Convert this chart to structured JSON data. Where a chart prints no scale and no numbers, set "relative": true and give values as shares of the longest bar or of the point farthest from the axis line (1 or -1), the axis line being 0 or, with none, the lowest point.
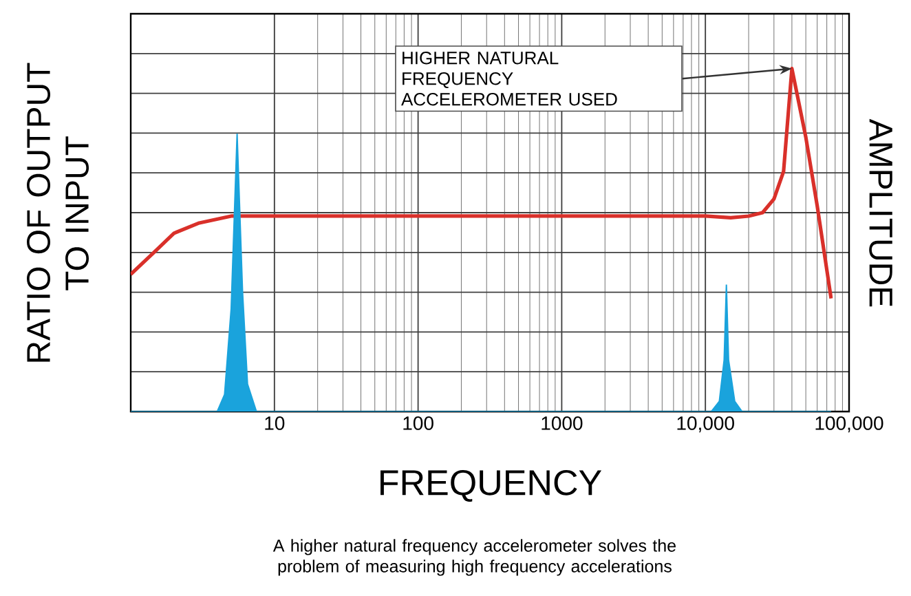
{
  "chart_data": {
    "type": "line",
    "xlabel": "FREQUENCY",
    "ylabel": "RATIO OF OUTPUT TO INPUT",
    "y2label": "AMPLITUDE",
    "relative": true,
    "log": "x",
    "grid": true,
    "xlim": [
      1,
      100000
    ],
    "xticks": [
      10,
      100,
      1000,
      {
        "value": 10000,
        "label": "10,000"
      },
      {
        "value": 100000,
        "label": "100,000"
      }
    ],
    "series": [
      {
        "color": "#d9302a",
        "x": [
          1,
          1.5,
          2,
          3,
          5,
          10,
          100,
          1000,
          10000,
          15000,
          20000,
          25000,
          30000,
          35000,
          40000,
          50000,
          60000,
          75000
        ],
        "values": [
          0.4,
          0.47,
          0.52,
          0.55,
          0.57,
          0.57,
          0.57,
          0.57,
          0.57,
          0.565,
          0.57,
          0.58,
          0.62,
          0.7,
          1.0,
          0.8,
          0.6,
          0.33
        ]
      },
      {
        "type": "area",
        "color": "#1aa3dc",
        "x": [
          1,
          4,
          4.5,
          5,
          5.5,
          6,
          6.5,
          7.5,
          11000,
          12500,
          13500,
          14000,
          14500,
          16000,
          18000,
          75000
        ],
        "values": [
          0,
          0,
          0.05,
          0.3,
          0.81,
          0.35,
          0.08,
          0,
          0,
          0.03,
          0.15,
          0.37,
          0.15,
          0.03,
          0,
          0
        ]
      }
    ],
    "annotations": [
      "HIGHER NATURAL FREQUENCY ACCELEROMETER USED",
      "A higher natural frequency accelerometer solves the problem of measuring high frequency accelerations"
    ]
  }
}
